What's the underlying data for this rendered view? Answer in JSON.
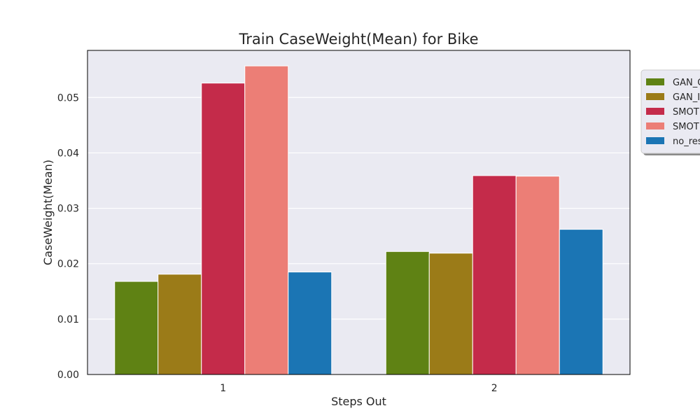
{
  "chart_data": {
    "type": "bar",
    "title": "Train CaseWeight(Mean) for Bike",
    "xlabel": "Steps Out",
    "ylabel": "CaseWeight(Mean)",
    "categories": [
      "1",
      "2"
    ],
    "ylim": [
      0,
      0.0585
    ],
    "yticks": [
      "0.00",
      "0.01",
      "0.02",
      "0.03",
      "0.04",
      "0.05"
    ],
    "grid": true,
    "legend_position": "right-outside",
    "series": [
      {
        "name": "GAN_C",
        "values": [
          0.0168,
          0.0222
        ],
        "color": "#5f8214"
      },
      {
        "name": "GAN_I",
        "values": [
          0.0181,
          0.0219
        ],
        "color": "#9b7b18"
      },
      {
        "name": "SMOT",
        "values": [
          0.0526,
          0.0359
        ],
        "color": "#c42b4a"
      },
      {
        "name": "SMOT",
        "values": [
          0.0557,
          0.0358
        ],
        "color": "#ec7e76"
      },
      {
        "name": "no_res",
        "values": [
          0.0185,
          0.0262
        ],
        "color": "#1b75b4"
      }
    ]
  }
}
